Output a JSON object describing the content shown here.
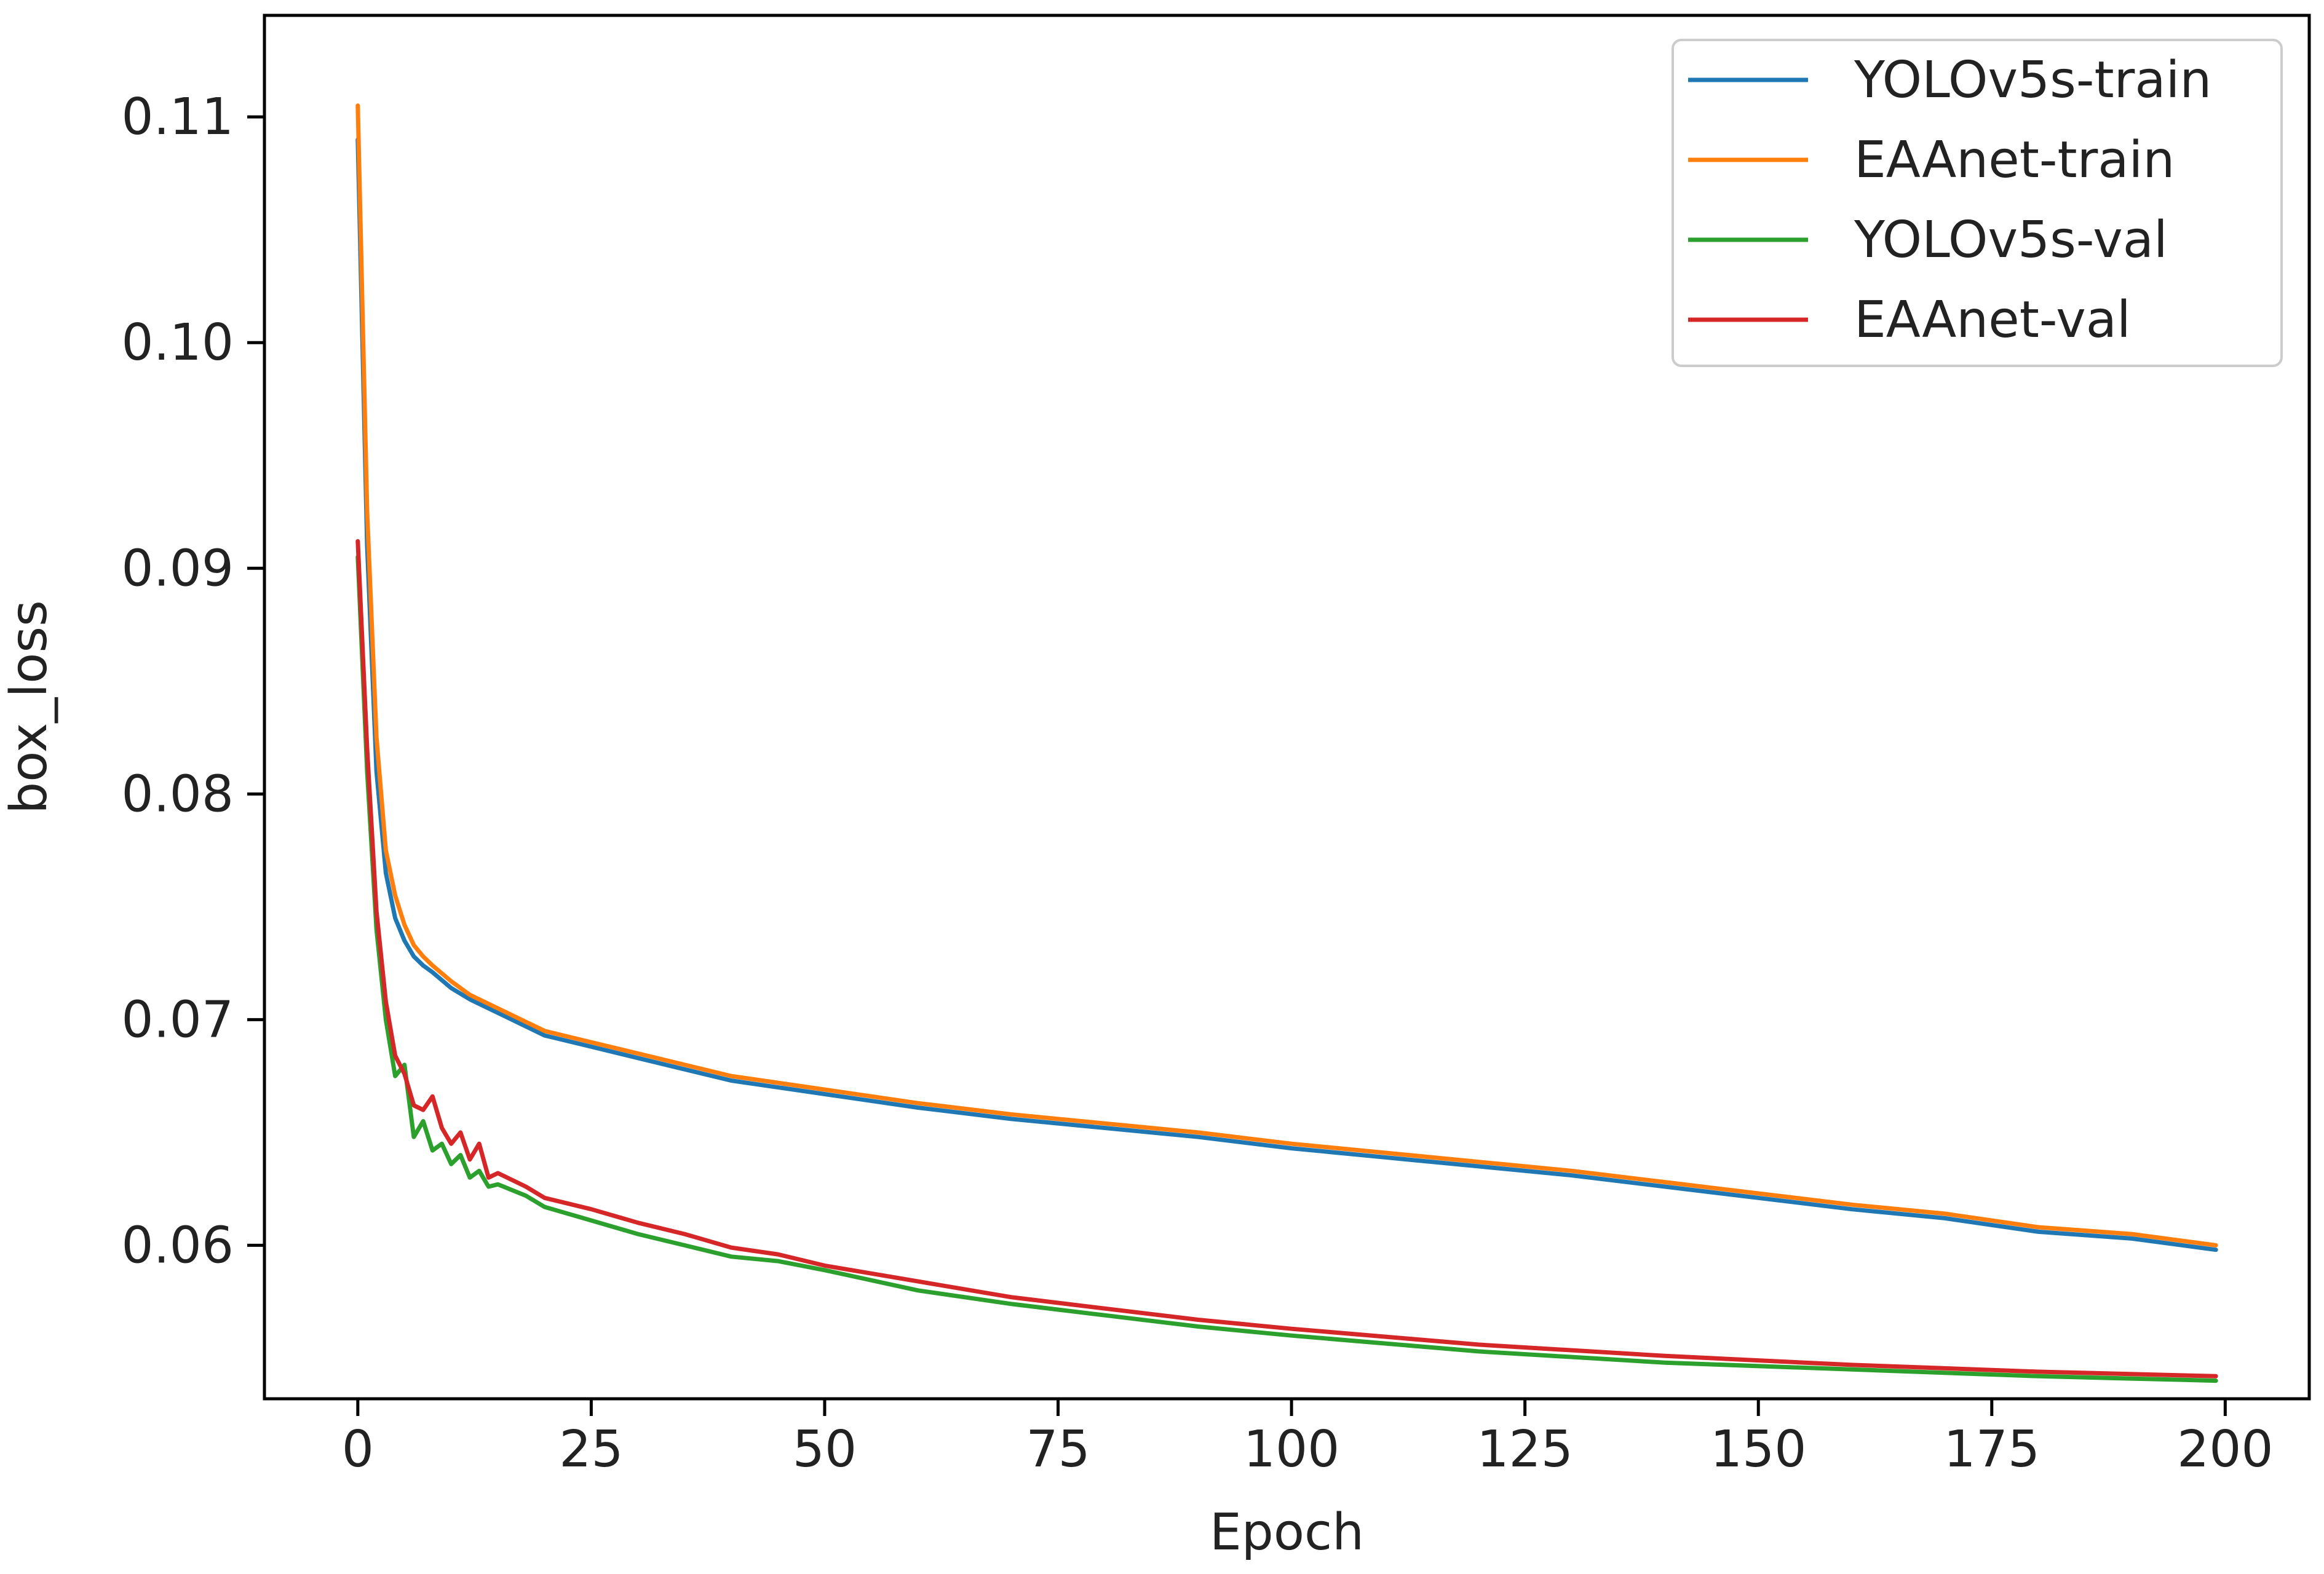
{
  "chart_data": {
    "type": "line",
    "title": "",
    "xlabel": "Epoch",
    "ylabel": "box_loss",
    "xlim": [
      -10,
      209
    ],
    "ylim": [
      0.0532,
      0.1145
    ],
    "xticks": [
      0,
      25,
      50,
      75,
      100,
      125,
      150,
      175,
      200
    ],
    "yticks": [
      0.06,
      0.07,
      0.08,
      0.09,
      0.1,
      0.11
    ],
    "ytick_labels": [
      "0.06",
      "0.07",
      "0.08",
      "0.09",
      "0.10",
      "0.11"
    ],
    "grid": false,
    "legend_position": "top-right",
    "series": [
      {
        "name": "YOLOv5s-train",
        "color": "#1f77b4",
        "x": [
          0,
          1,
          2,
          3,
          4,
          5,
          6,
          7,
          8,
          10,
          12,
          15,
          20,
          25,
          30,
          40,
          50,
          60,
          70,
          80,
          90,
          100,
          110,
          120,
          130,
          140,
          150,
          160,
          170,
          180,
          190,
          199
        ],
        "y": [
          0.109,
          0.091,
          0.081,
          0.0765,
          0.0745,
          0.0735,
          0.0728,
          0.0724,
          0.0721,
          0.0714,
          0.0709,
          0.0703,
          0.0693,
          0.0688,
          0.0683,
          0.0673,
          0.0667,
          0.0661,
          0.0656,
          0.0652,
          0.0648,
          0.0643,
          0.0639,
          0.0635,
          0.0631,
          0.0626,
          0.0621,
          0.0616,
          0.0612,
          0.0606,
          0.0603,
          0.0598
        ]
      },
      {
        "name": "EAAnet-train",
        "color": "#ff7f0e",
        "x": [
          0,
          1,
          2,
          3,
          4,
          5,
          6,
          7,
          8,
          10,
          12,
          15,
          20,
          25,
          30,
          40,
          50,
          60,
          70,
          80,
          90,
          100,
          110,
          120,
          130,
          140,
          150,
          160,
          170,
          180,
          190,
          199
        ],
        "y": [
          0.1105,
          0.0925,
          0.0825,
          0.0775,
          0.0755,
          0.0742,
          0.0733,
          0.0728,
          0.0724,
          0.0717,
          0.0711,
          0.0705,
          0.0695,
          0.069,
          0.0685,
          0.0675,
          0.0669,
          0.0663,
          0.0658,
          0.0654,
          0.065,
          0.0645,
          0.0641,
          0.0637,
          0.0633,
          0.0628,
          0.0623,
          0.0618,
          0.0614,
          0.0608,
          0.0605,
          0.06
        ]
      },
      {
        "name": "YOLOv5s-val",
        "color": "#2ca02c",
        "x": [
          0,
          1,
          2,
          3,
          4,
          5,
          6,
          7,
          8,
          9,
          10,
          11,
          12,
          13,
          14,
          15,
          18,
          20,
          25,
          30,
          35,
          40,
          45,
          50,
          60,
          70,
          80,
          90,
          100,
          120,
          140,
          160,
          180,
          199
        ],
        "y": [
          0.0905,
          0.081,
          0.074,
          0.07,
          0.0675,
          0.068,
          0.0648,
          0.0655,
          0.0642,
          0.0645,
          0.0636,
          0.064,
          0.063,
          0.0633,
          0.0626,
          0.0627,
          0.0622,
          0.0617,
          0.0611,
          0.0605,
          0.06,
          0.0595,
          0.0593,
          0.0589,
          0.058,
          0.0574,
          0.0569,
          0.0564,
          0.056,
          0.0553,
          0.0548,
          0.0545,
          0.0542,
          0.054
        ]
      },
      {
        "name": "EAAnet-val",
        "color": "#d62728",
        "x": [
          0,
          1,
          2,
          3,
          4,
          5,
          6,
          7,
          8,
          9,
          10,
          11,
          12,
          13,
          14,
          15,
          18,
          20,
          25,
          30,
          35,
          40,
          45,
          50,
          60,
          70,
          80,
          90,
          100,
          120,
          140,
          160,
          180,
          199
        ],
        "y": [
          0.0912,
          0.082,
          0.0748,
          0.0708,
          0.0684,
          0.0676,
          0.0662,
          0.066,
          0.0666,
          0.0652,
          0.0645,
          0.065,
          0.0638,
          0.0645,
          0.063,
          0.0632,
          0.0626,
          0.0621,
          0.0616,
          0.061,
          0.0605,
          0.0599,
          0.0596,
          0.0591,
          0.0584,
          0.0577,
          0.0572,
          0.0567,
          0.0563,
          0.0556,
          0.0551,
          0.0547,
          0.0544,
          0.0542
        ]
      }
    ]
  }
}
